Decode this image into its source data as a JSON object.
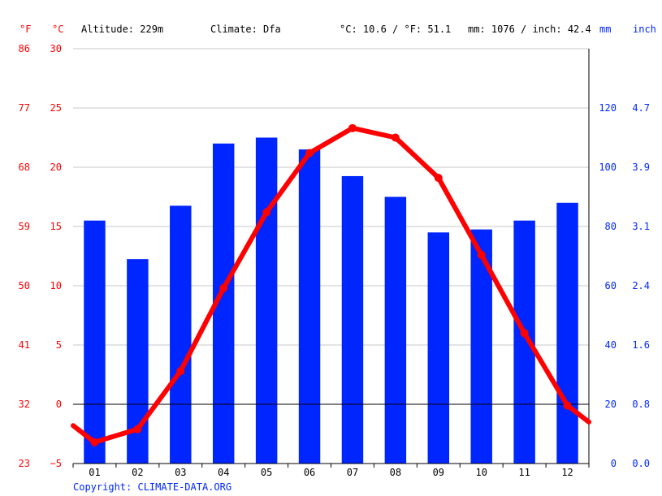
{
  "header": {
    "altitude": "Altitude: 229m",
    "climate": "Climate: Dfa",
    "temp_avg": "°C: 10.6 / °F: 51.1",
    "precip_total": "mm: 1076 / inch: 42.4"
  },
  "units": {
    "f": "°F",
    "c": "°C",
    "mm": "mm",
    "inch": "inch"
  },
  "copyright": "Copyright: CLIMATE-DATA.ORG",
  "colors": {
    "temperature": "#ff0000",
    "precipitation": "#0026ff",
    "grid": "#c8c8c8",
    "zero_line": "#000000"
  },
  "chart_data": {
    "type": "bar",
    "categories": [
      "01",
      "02",
      "03",
      "04",
      "05",
      "06",
      "07",
      "08",
      "09",
      "10",
      "11",
      "12"
    ],
    "series": [
      {
        "values": [
          82,
          69,
          87,
          108,
          110,
          106,
          97,
          90,
          78,
          79,
          82,
          88
        ],
        "type": "bar",
        "axis": "right",
        "unit": "mm"
      },
      {
        "values": [
          -3.2,
          -2.1,
          2.8,
          9.8,
          16.2,
          21.2,
          23.3,
          22.5,
          19.1,
          12.6,
          6.0,
          -0.1
        ],
        "type": "line",
        "axis": "left",
        "unit": "°C",
        "edge_values": [
          -1.8,
          -1.5
        ]
      }
    ],
    "y_left_c": {
      "ticks": [
        "30",
        "25",
        "20",
        "15",
        "10",
        "5",
        "0",
        "−5"
      ],
      "ylim": [
        -5,
        30
      ]
    },
    "y_left_f": {
      "ticks": [
        "86",
        "77",
        "68",
        "59",
        "50",
        "41",
        "32",
        "23"
      ]
    },
    "y_right_mm": {
      "ticks": [
        "120",
        "100",
        "80",
        "60",
        "40",
        "20",
        "0"
      ],
      "ylim": [
        0,
        140
      ]
    },
    "y_right_inch": {
      "ticks": [
        "4.7",
        "3.9",
        "3.1",
        "2.4",
        "1.6",
        "0.8",
        "0.0"
      ]
    },
    "grid": true
  }
}
